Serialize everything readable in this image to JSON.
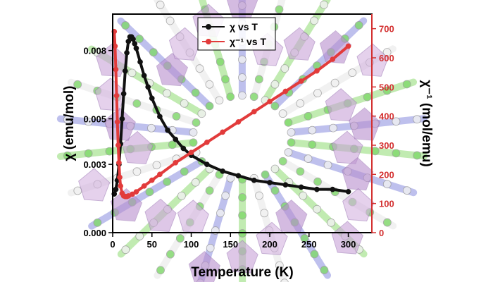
{
  "chart_data": {
    "type": "line",
    "xlabel": "Temperature (K)",
    "ylabel_left": "χ (emu/mol)",
    "ylabel_right": "χ⁻¹ (mol/emu)",
    "xlim": [
      0,
      330
    ],
    "ylim_left": [
      0,
      0.0096
    ],
    "ylim_right": [
      0,
      750
    ],
    "x_ticks": [
      0,
      50,
      100,
      150,
      200,
      250,
      300
    ],
    "left_ticks": [
      {
        "value": 0.0,
        "label": "0.000"
      },
      {
        "value": 0.003,
        "label": "0.003"
      },
      {
        "value": 0.005,
        "label": "0.005"
      },
      {
        "value": 0.008,
        "label": "0.008"
      }
    ],
    "right_ticks": [
      0,
      100,
      200,
      300,
      400,
      500,
      600,
      700
    ],
    "legend_position": "top-center",
    "background": "crystal-structure illustration (polyhedra with green, blue and white spheres)",
    "colors": {
      "chi": "#111111",
      "chi_inv": "#e23b3b",
      "right_axis": "#d32f2f",
      "left_axis": "#000000"
    },
    "series": [
      {
        "name": "χ vs T",
        "axis": "left",
        "color": "#111111",
        "x": [
          2,
          4,
          6,
          8,
          10,
          12,
          14,
          16,
          18,
          20,
          22,
          24,
          26,
          28,
          30,
          35,
          40,
          45,
          50,
          60,
          70,
          80,
          90,
          100,
          120,
          140,
          160,
          180,
          200,
          220,
          240,
          260,
          280,
          300
        ],
        "y": [
          0.0017,
          0.0019,
          0.0023,
          0.003,
          0.0039,
          0.005,
          0.0061,
          0.0071,
          0.0079,
          0.0084,
          0.0086,
          0.0086,
          0.0085,
          0.0083,
          0.0081,
          0.0075,
          0.0069,
          0.0064,
          0.0059,
          0.0051,
          0.0045,
          0.0041,
          0.0037,
          0.0034,
          0.003,
          0.0027,
          0.0025,
          0.0023,
          0.0022,
          0.0021,
          0.002,
          0.0019,
          0.0019,
          0.0018
        ]
      },
      {
        "name": "χ⁻¹ vs T",
        "axis": "right",
        "color": "#e23b3b",
        "x": [
          2,
          3,
          4,
          5,
          6,
          7,
          8,
          9,
          10,
          12,
          14,
          16,
          18,
          20,
          25,
          30,
          40,
          50,
          60,
          80,
          100,
          120,
          140,
          160,
          180,
          200,
          220,
          240,
          260,
          280,
          300
        ],
        "y": [
          690,
          640,
          560,
          470,
          380,
          300,
          240,
          190,
          160,
          135,
          126,
          124,
          124,
          126,
          132,
          140,
          160,
          180,
          200,
          240,
          275,
          310,
          345,
          380,
          415,
          450,
          485,
          520,
          555,
          595,
          640
        ]
      }
    ]
  }
}
